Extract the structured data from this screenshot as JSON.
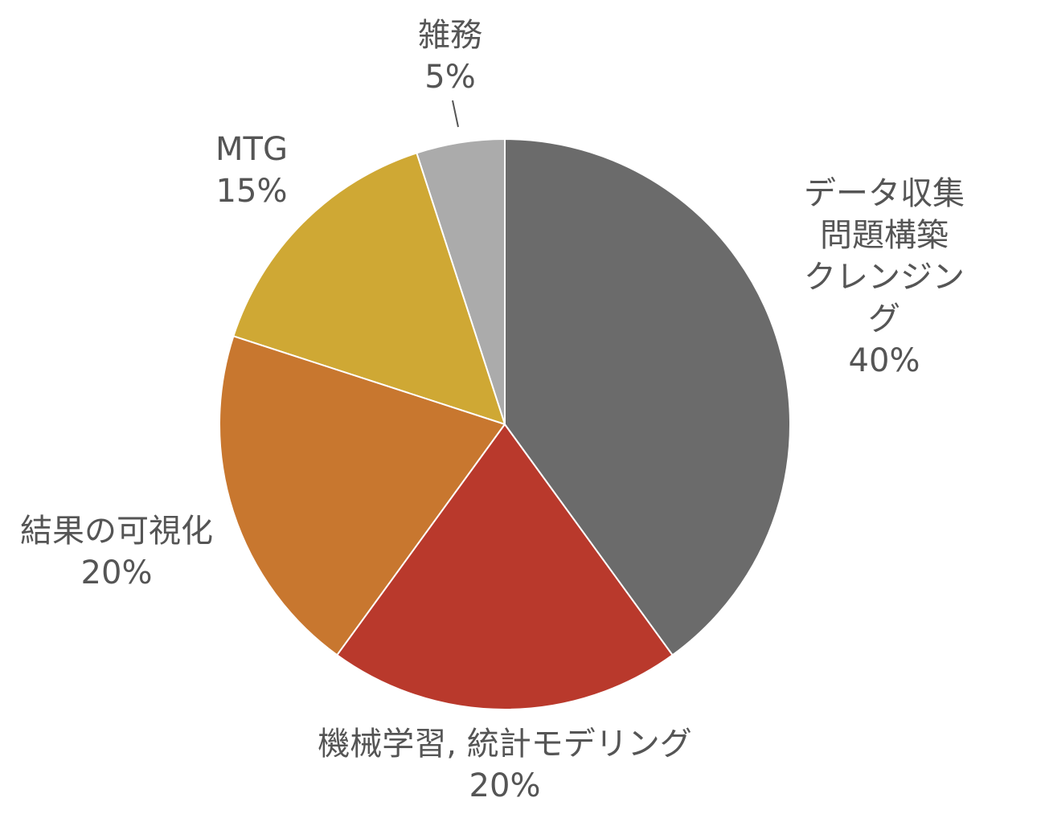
{
  "chart_data": {
    "type": "pie",
    "categories": [
      "データ収集\n問題構築\nクレンジング",
      "機械学習, 統計モデリング",
      "結果の可視化",
      "MTG",
      "雑務"
    ],
    "values": [
      40,
      20,
      20,
      15,
      5
    ],
    "value_labels": [
      "40%",
      "20%",
      "20%",
      "15%",
      "5%"
    ],
    "colors": [
      "#6b6b6b",
      "#b9392c",
      "#c8772f",
      "#cfa834",
      "#ababab"
    ]
  }
}
